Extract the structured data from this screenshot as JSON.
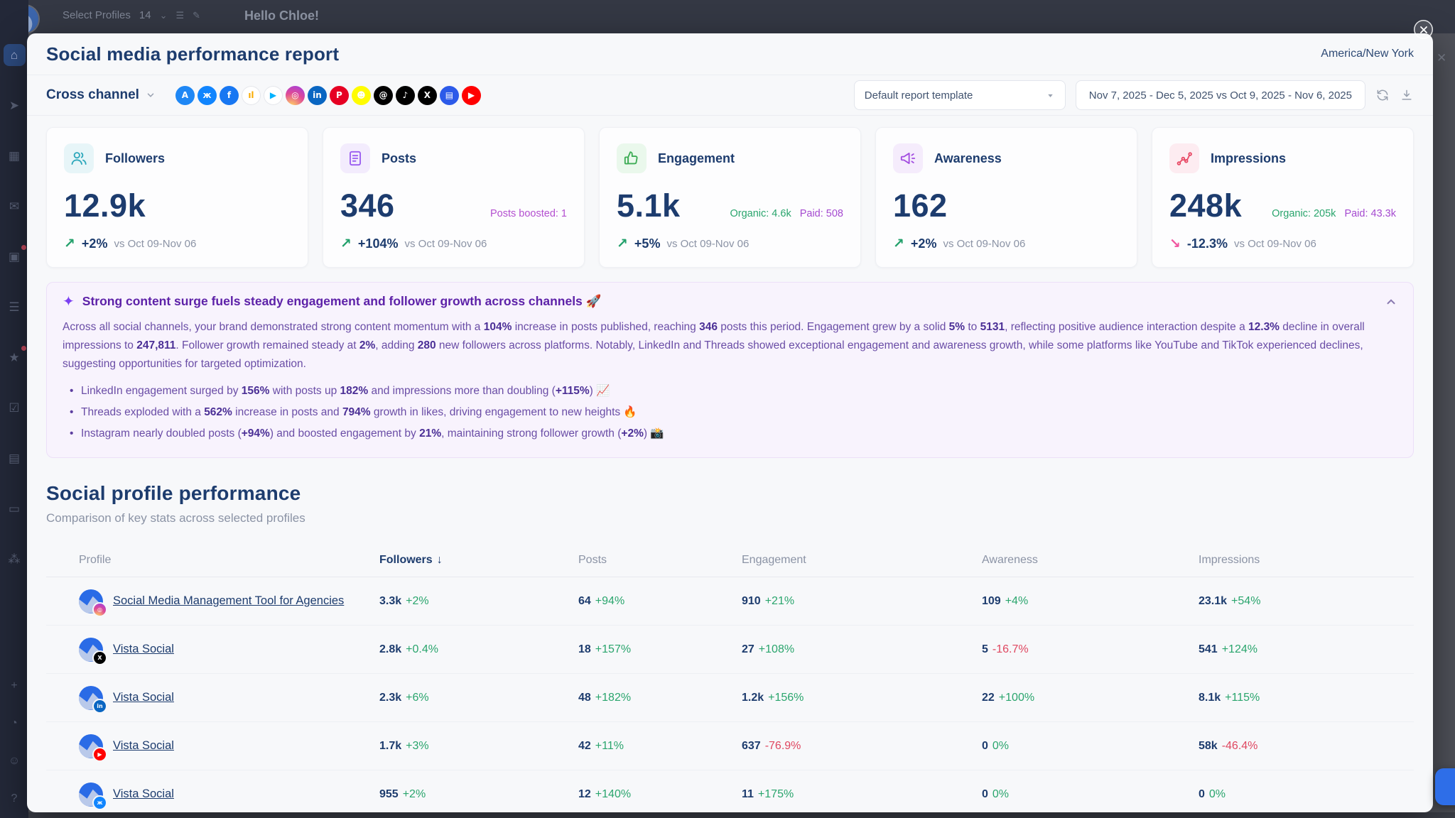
{
  "backdrop": {
    "topbar": {
      "select_profiles_label": "Select Profiles",
      "profiles_count": "14",
      "caret_glyph": "⌄",
      "menu_glyph": "☰",
      "pencil_glyph": "✎",
      "greeting": "Hello Chloe!",
      "background_close_glyph": "✕"
    },
    "sidebar_icons": [
      {
        "name": "home",
        "glyph": "⌂",
        "active": true
      },
      {
        "name": "publish",
        "glyph": "➤"
      },
      {
        "name": "calendar",
        "glyph": "▦"
      },
      {
        "name": "inbox",
        "glyph": "✉"
      },
      {
        "name": "media",
        "glyph": "▣",
        "dot": true
      },
      {
        "name": "planner",
        "glyph": "☰"
      },
      {
        "name": "reviews",
        "glyph": "★",
        "dot": true
      },
      {
        "name": "approvals",
        "glyph": "☑"
      },
      {
        "name": "reports",
        "glyph": "▤"
      },
      {
        "name": "billing",
        "glyph": "▭"
      },
      {
        "name": "advocacy",
        "glyph": "⁂"
      }
    ],
    "sidebar_bottom_icons": [
      {
        "name": "create",
        "glyph": "+"
      },
      {
        "name": "notifications",
        "glyph": "◔"
      },
      {
        "name": "status",
        "glyph": "☺"
      },
      {
        "name": "help",
        "glyph": "?"
      }
    ]
  },
  "modal": {
    "title": "Social media performance report",
    "timezone": "America/New York",
    "toolbar": {
      "channel_label": "Cross channel",
      "platforms": [
        {
          "name": "app-store",
          "glyph": "A",
          "bg": "#1e87f5",
          "fg": "#ffffff"
        },
        {
          "name": "bluesky",
          "glyph": "ж",
          "bg": "#1185fe",
          "fg": "#ffffff"
        },
        {
          "name": "facebook",
          "glyph": "f",
          "bg": "#1877f2",
          "fg": "#ffffff"
        },
        {
          "name": "google-analytics",
          "glyph": "ıl",
          "bg": "#ffffff",
          "fg": "#f9ab00",
          "border": "#e4e6eb"
        },
        {
          "name": "google-play",
          "glyph": "▶",
          "bg": "#ffffff",
          "fg": "#00b2ff",
          "border": "#e4e6eb"
        },
        {
          "name": "instagram",
          "glyph": "◎",
          "bg": "radial-gradient(circle at 30% 110%, #fdc468 10%, #df4996 55%, #9b3ee8 100%)",
          "fg": "#ffffff"
        },
        {
          "name": "linkedin",
          "glyph": "in",
          "bg": "#0a66c2",
          "fg": "#ffffff"
        },
        {
          "name": "pinterest",
          "glyph": "P",
          "bg": "#e60023",
          "fg": "#ffffff"
        },
        {
          "name": "snapchat",
          "glyph": "☻",
          "bg": "#fffc00",
          "fg": "#ffffff"
        },
        {
          "name": "threads",
          "glyph": "@",
          "bg": "#000000",
          "fg": "#ffffff"
        },
        {
          "name": "tiktok",
          "glyph": "♪",
          "bg": "#010101",
          "fg": "#ffffff"
        },
        {
          "name": "x",
          "glyph": "X",
          "bg": "#000000",
          "fg": "#ffffff"
        },
        {
          "name": "tumblr",
          "glyph": "▤",
          "bg": "#2c5ae9",
          "fg": "#ffffff"
        },
        {
          "name": "youtube",
          "glyph": "▶",
          "bg": "#ff0000",
          "fg": "#ffffff"
        }
      ],
      "template_select": "Default report template",
      "date_range": "Nov 7, 2025 - Dec 5, 2025 vs Oct 9, 2025 - Nov 6, 2025"
    },
    "cards": [
      {
        "label": "Followers",
        "value": "12.9k",
        "delta": "+2%",
        "arrow": "↗",
        "dir": "up",
        "vs": "vs Oct 09-Nov 06",
        "icon_color": "#2fa8bc",
        "icon_bg": "#e7f5f8"
      },
      {
        "label": "Posts",
        "value": "346",
        "note": "Posts boosted: 1",
        "delta": "+104%",
        "arrow": "↗",
        "dir": "up",
        "vs": "vs Oct 09-Nov 06",
        "icon_color": "#9a5cf0",
        "icon_bg": "#f3ecfd"
      },
      {
        "label": "Engagement",
        "value": "5.1k",
        "organic": "Organic: 4.6k",
        "paid": "Paid: 508",
        "delta": "+5%",
        "arrow": "↗",
        "dir": "up",
        "vs": "vs Oct 09-Nov 06",
        "icon_color": "#3dac55",
        "icon_bg": "#eaf8ec"
      },
      {
        "label": "Awareness",
        "value": "162",
        "delta": "+2%",
        "arrow": "↗",
        "dir": "up",
        "vs": "vs Oct 09-Nov 06",
        "icon_color": "#a24be0",
        "icon_bg": "#f5ecfc"
      },
      {
        "label": "Impressions",
        "value": "248k",
        "organic": "Organic: 205k",
        "paid": "Paid: 43.3k",
        "delta": "-12.3%",
        "arrow": "↘",
        "dir": "down",
        "vs": "vs Oct 09-Nov 06",
        "icon_color": "#e84a66",
        "icon_bg": "#fdecf1"
      }
    ],
    "insight": {
      "sparkle_glyph": "✦",
      "title": "Strong content surge fuels steady engagement and follower growth across channels 🚀",
      "paragraph": [
        {
          "t": "Across all social channels, your brand demonstrated strong content momentum with a "
        },
        {
          "t": "104%",
          "b": true
        },
        {
          "t": " increase in posts published, reaching "
        },
        {
          "t": "346",
          "b": true
        },
        {
          "t": " posts this period. Engagement grew by a solid "
        },
        {
          "t": "5%",
          "b": true
        },
        {
          "t": " to "
        },
        {
          "t": "5131",
          "b": true
        },
        {
          "t": ", reflecting positive audience interaction despite a "
        },
        {
          "t": "12.3%",
          "b": true
        },
        {
          "t": " decline in overall impressions to "
        },
        {
          "t": "247,811",
          "b": true
        },
        {
          "t": ". Follower growth remained steady at "
        },
        {
          "t": "2%",
          "b": true
        },
        {
          "t": ", adding "
        },
        {
          "t": "280",
          "b": true
        },
        {
          "t": " new followers across platforms. Notably, LinkedIn and Threads showed exceptional engagement and awareness growth, while some platforms like YouTube and TikTok experienced declines, suggesting opportunities for targeted optimization."
        }
      ],
      "bullets": [
        [
          {
            "t": "LinkedIn engagement surged by "
          },
          {
            "t": "156%",
            "b": true
          },
          {
            "t": " with posts up "
          },
          {
            "t": "182%",
            "b": true
          },
          {
            "t": " and impressions more than doubling ("
          },
          {
            "t": "+115%",
            "b": true
          },
          {
            "t": ") 📈"
          }
        ],
        [
          {
            "t": "Threads exploded with a "
          },
          {
            "t": "562%",
            "b": true
          },
          {
            "t": " increase in posts and "
          },
          {
            "t": "794%",
            "b": true
          },
          {
            "t": " growth in likes, driving engagement to new heights 🔥"
          }
        ],
        [
          {
            "t": "Instagram nearly doubled posts ("
          },
          {
            "t": "+94%",
            "b": true
          },
          {
            "t": ") and boosted engagement by "
          },
          {
            "t": "21%",
            "b": true
          },
          {
            "t": ", maintaining strong follower growth ("
          },
          {
            "t": "+2%",
            "b": true
          },
          {
            "t": ") 📸"
          }
        ]
      ]
    },
    "section": {
      "title": "Social profile performance",
      "subtitle": "Comparison of key stats across selected profiles"
    },
    "table": {
      "columns": [
        "Profile",
        "Followers",
        "Posts",
        "Engagement",
        "Awareness",
        "Impressions"
      ],
      "sort_arrow": "↓",
      "rows": [
        {
          "name": "Social Media Management Tool for Agencies",
          "network": "instagram",
          "badge_glyph": "◎",
          "badge_bg": "radial-gradient(circle at 30% 110%, #fdc468 10%, #df4996 55%, #9b3ee8 100%)",
          "metrics": [
            {
              "v": "3.3k",
              "d": "+2%",
              "dir": "up"
            },
            {
              "v": "64",
              "d": "+94%",
              "dir": "up"
            },
            {
              "v": "910",
              "d": "+21%",
              "dir": "up"
            },
            {
              "v": "109",
              "d": "+4%",
              "dir": "up"
            },
            {
              "v": "23.1k",
              "d": "+54%",
              "dir": "up"
            }
          ]
        },
        {
          "name": "Vista Social",
          "network": "x",
          "badge_glyph": "X",
          "badge_bg": "#000000",
          "metrics": [
            {
              "v": "2.8k",
              "d": "+0.4%",
              "dir": "up"
            },
            {
              "v": "18",
              "d": "+157%",
              "dir": "up"
            },
            {
              "v": "27",
              "d": "+108%",
              "dir": "up"
            },
            {
              "v": "5",
              "d": "-16.7%",
              "dir": "down"
            },
            {
              "v": "541",
              "d": "+124%",
              "dir": "up"
            }
          ]
        },
        {
          "name": "Vista Social",
          "network": "linkedin",
          "badge_glyph": "in",
          "badge_bg": "#0a66c2",
          "metrics": [
            {
              "v": "2.3k",
              "d": "+6%",
              "dir": "up"
            },
            {
              "v": "48",
              "d": "+182%",
              "dir": "up"
            },
            {
              "v": "1.2k",
              "d": "+156%",
              "dir": "up"
            },
            {
              "v": "22",
              "d": "+100%",
              "dir": "up"
            },
            {
              "v": "8.1k",
              "d": "+115%",
              "dir": "up"
            }
          ]
        },
        {
          "name": "Vista Social",
          "network": "youtube",
          "badge_glyph": "▶",
          "badge_bg": "#ff0000",
          "metrics": [
            {
              "v": "1.7k",
              "d": "+3%",
              "dir": "up"
            },
            {
              "v": "42",
              "d": "+11%",
              "dir": "up"
            },
            {
              "v": "637",
              "d": "-76.9%",
              "dir": "down"
            },
            {
              "v": "0",
              "d": "0%",
              "dir": "up"
            },
            {
              "v": "58k",
              "d": "-46.4%",
              "dir": "down"
            }
          ]
        },
        {
          "name": "Vista Social",
          "network": "bluesky",
          "badge_glyph": "ж",
          "badge_bg": "#1185fe",
          "metrics": [
            {
              "v": "955",
              "d": "+2%",
              "dir": "up"
            },
            {
              "v": "12",
              "d": "+140%",
              "dir": "up"
            },
            {
              "v": "11",
              "d": "+175%",
              "dir": "up"
            },
            {
              "v": "0",
              "d": "0%",
              "dir": "up"
            },
            {
              "v": "0",
              "d": "0%",
              "dir": "up"
            }
          ]
        }
      ]
    }
  },
  "colors": {
    "navy": "#1d3c6e",
    "green": "#2aa56d",
    "red": "#df4760",
    "pink_down": "#f0559f",
    "purple_title": "#5d21a8",
    "purple_body": "#6a4da6",
    "modal_bg": "#f7f8fa"
  }
}
